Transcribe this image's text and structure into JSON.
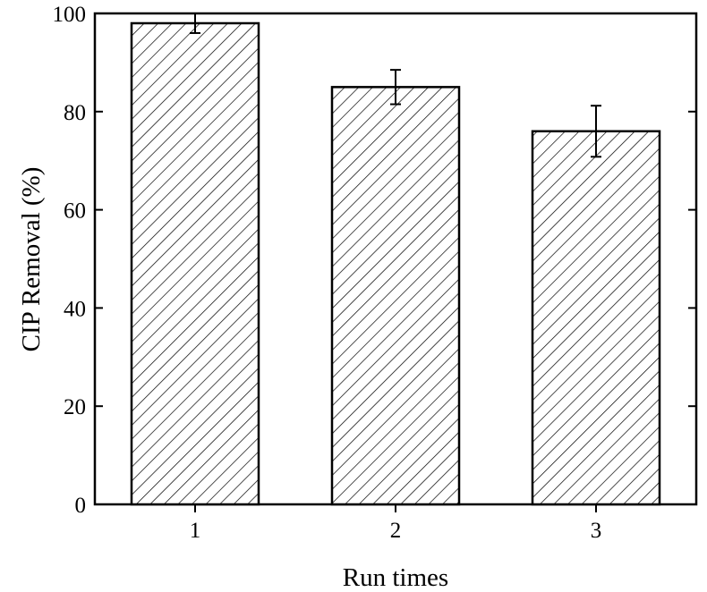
{
  "chart_data": {
    "type": "bar",
    "categories": [
      "1",
      "2",
      "3"
    ],
    "values": [
      98,
      85,
      76
    ],
    "errors": [
      2,
      3.5,
      5.2
    ],
    "xlabel": "Run times",
    "ylabel": "CIP Removal (%)",
    "ylim": [
      0,
      100
    ],
    "yticks": [
      0,
      20,
      40,
      60,
      80,
      100
    ],
    "grid": false,
    "legend": "none",
    "bar_pattern": "diagonal-hatch",
    "colors": {
      "bar_fill": "#ffffff",
      "hatch": "#000000",
      "axis": "#000000"
    }
  }
}
